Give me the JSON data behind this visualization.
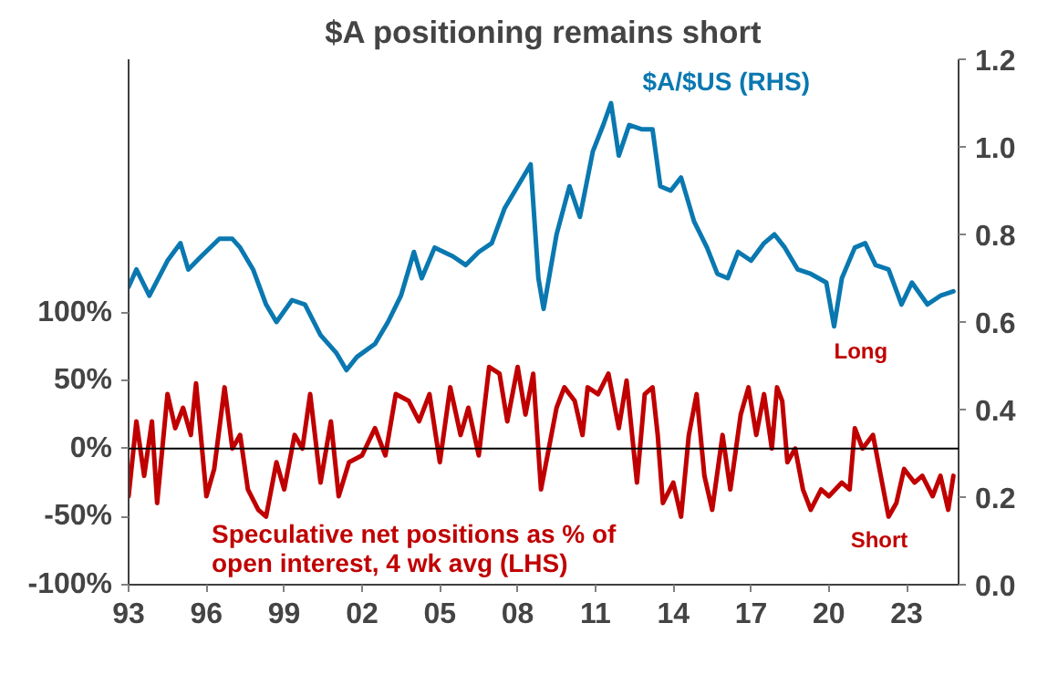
{
  "chart_data": {
    "type": "line",
    "title": "$A positioning remains short",
    "xlim": [
      1993,
      2025
    ],
    "xticks": [
      {
        "value": 1993,
        "label": "93"
      },
      {
        "value": 1996,
        "label": "96"
      },
      {
        "value": 1999,
        "label": "99"
      },
      {
        "value": 2002,
        "label": "02"
      },
      {
        "value": 2005,
        "label": "05"
      },
      {
        "value": 2008,
        "label": "08"
      },
      {
        "value": 2011,
        "label": "11"
      },
      {
        "value": 2014,
        "label": "14"
      },
      {
        "value": 2017,
        "label": "17"
      },
      {
        "value": 2020,
        "label": "20"
      },
      {
        "value": 2023,
        "label": "23"
      }
    ],
    "ylim": [
      -100,
      286
    ],
    "yticks": [
      {
        "value": -100,
        "label": "-100%"
      },
      {
        "value": -50,
        "label": "-50%"
      },
      {
        "value": 0,
        "label": "0%"
      },
      {
        "value": 50,
        "label": "50%"
      },
      {
        "value": 100,
        "label": "100%"
      }
    ],
    "y2lim": [
      0,
      1.2
    ],
    "y2ticks": [
      {
        "value": 0,
        "label": "0.0"
      },
      {
        "value": 0.2,
        "label": "0.2"
      },
      {
        "value": 0.4,
        "label": "0.4"
      },
      {
        "value": 0.6,
        "label": "0.6"
      },
      {
        "value": 0.8,
        "label": "0.8"
      },
      {
        "value": 1.0,
        "label": "1.0"
      },
      {
        "value": 1.2,
        "label": "1.2"
      }
    ],
    "grid": false,
    "legend": false,
    "line_style": "solid",
    "marker": "none",
    "ref_lines": [
      {
        "axis": "y",
        "value": 0,
        "color": "#000000"
      }
    ],
    "annotations": [
      "Long",
      "Short"
    ],
    "series": [
      {
        "name": "$A/$US (RHS)",
        "color": "#0a78b0",
        "axis": "y2",
        "x": [
          1993.0,
          1993.3,
          1993.8,
          1994.5,
          1995.0,
          1995.3,
          1995.8,
          1996.5,
          1997.0,
          1997.3,
          1997.8,
          1998.3,
          1998.7,
          1999.3,
          1999.8,
          2000.4,
          2001.0,
          2001.4,
          2001.8,
          2002.5,
          2003.0,
          2003.5,
          2004.0,
          2004.3,
          2004.8,
          2005.5,
          2006.0,
          2006.5,
          2007.0,
          2007.5,
          2007.9,
          2008.5,
          2008.8,
          2009.0,
          2009.5,
          2010.0,
          2010.4,
          2010.9,
          2011.3,
          2011.6,
          2011.9,
          2012.3,
          2012.8,
          2013.2,
          2013.5,
          2013.9,
          2014.3,
          2014.8,
          2015.3,
          2015.7,
          2016.1,
          2016.5,
          2017.0,
          2017.5,
          2017.9,
          2018.3,
          2018.8,
          2019.3,
          2019.9,
          2020.2,
          2020.5,
          2021.0,
          2021.4,
          2021.8,
          2022.3,
          2022.8,
          2023.2,
          2023.8,
          2024.3,
          2024.8
        ],
        "values": [
          0.68,
          0.72,
          0.66,
          0.74,
          0.78,
          0.72,
          0.75,
          0.79,
          0.79,
          0.77,
          0.72,
          0.64,
          0.6,
          0.65,
          0.64,
          0.57,
          0.53,
          0.49,
          0.52,
          0.55,
          0.6,
          0.66,
          0.76,
          0.7,
          0.77,
          0.75,
          0.73,
          0.76,
          0.78,
          0.86,
          0.9,
          0.96,
          0.7,
          0.63,
          0.8,
          0.91,
          0.84,
          0.99,
          1.05,
          1.1,
          0.98,
          1.05,
          1.04,
          1.04,
          0.91,
          0.9,
          0.93,
          0.83,
          0.77,
          0.71,
          0.7,
          0.76,
          0.74,
          0.78,
          0.8,
          0.77,
          0.72,
          0.71,
          0.69,
          0.59,
          0.7,
          0.77,
          0.78,
          0.73,
          0.72,
          0.64,
          0.69,
          0.64,
          0.66,
          0.67
        ]
      },
      {
        "name": "Speculative net positions as % of open interest, 4 wk avg (LHS)",
        "color": "#c00000",
        "x": [
          1993.0,
          1993.3,
          1993.6,
          1993.9,
          1994.1,
          1994.5,
          1994.8,
          1995.1,
          1995.4,
          1995.6,
          1996.0,
          1996.3,
          1996.7,
          1997.0,
          1997.3,
          1997.6,
          1998.0,
          1998.3,
          1998.7,
          1999.0,
          1999.4,
          1999.7,
          2000.0,
          2000.4,
          2000.8,
          2001.1,
          2001.5,
          2002.0,
          2002.5,
          2002.9,
          2003.3,
          2003.8,
          2004.2,
          2004.6,
          2005.0,
          2005.4,
          2005.8,
          2006.1,
          2006.5,
          2006.9,
          2007.3,
          2007.6,
          2008.0,
          2008.3,
          2008.6,
          2008.9,
          2009.1,
          2009.5,
          2009.8,
          2010.2,
          2010.5,
          2010.7,
          2011.1,
          2011.5,
          2011.9,
          2012.2,
          2012.6,
          2012.9,
          2013.2,
          2013.4,
          2013.6,
          2014.0,
          2014.3,
          2014.6,
          2014.9,
          2015.2,
          2015.5,
          2015.9,
          2016.2,
          2016.6,
          2016.9,
          2017.2,
          2017.5,
          2017.8,
          2018.0,
          2018.2,
          2018.4,
          2018.7,
          2019.0,
          2019.3,
          2019.7,
          2020.0,
          2020.5,
          2020.8,
          2021.0,
          2021.3,
          2021.7,
          2022.0,
          2022.3,
          2022.6,
          2022.9,
          2023.3,
          2023.6,
          2024.0,
          2024.3,
          2024.6,
          2024.8
        ],
        "values": [
          -35,
          20,
          -20,
          20,
          -40,
          40,
          15,
          30,
          10,
          48,
          -35,
          -15,
          45,
          0,
          10,
          -30,
          -45,
          -50,
          -10,
          -30,
          10,
          0,
          40,
          -25,
          20,
          -35,
          -10,
          -5,
          15,
          -5,
          40,
          35,
          20,
          40,
          -10,
          45,
          10,
          30,
          -5,
          60,
          55,
          20,
          60,
          25,
          55,
          -30,
          -10,
          30,
          45,
          35,
          10,
          45,
          40,
          55,
          15,
          50,
          -25,
          40,
          45,
          10,
          -40,
          -25,
          -50,
          10,
          40,
          -20,
          -45,
          10,
          -30,
          25,
          45,
          10,
          40,
          0,
          45,
          35,
          -10,
          0,
          -30,
          -45,
          -30,
          -35,
          -25,
          -30,
          15,
          0,
          10,
          -20,
          -50,
          -40,
          -15,
          -25,
          -20,
          -35,
          -20,
          -45,
          -20
        ]
      }
    ]
  }
}
